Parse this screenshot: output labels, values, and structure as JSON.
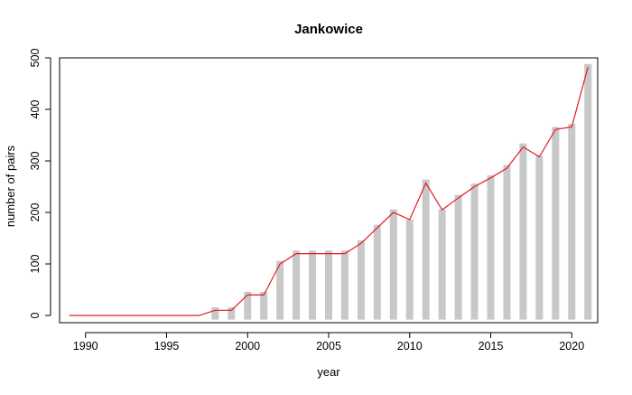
{
  "chart_data": {
    "type": "bar",
    "title": "Jankowice",
    "xlabel": "year",
    "ylabel": "number of pairs",
    "xlim": [
      1988.4,
      2021.6
    ],
    "ylim": [
      -14,
      500
    ],
    "xticks": [
      1990,
      1995,
      2000,
      2005,
      2010,
      2015,
      2020
    ],
    "yticks": [
      0,
      100,
      200,
      300,
      400,
      500
    ],
    "grid": false,
    "bar_baseline": -8,
    "colors": {
      "bars": "#c8c8c8",
      "line": "#e41a1c",
      "axes": "#000000"
    },
    "series": [
      {
        "type": "bar",
        "x": [
          1998,
          1999,
          2000,
          2001,
          2002,
          2003,
          2004,
          2005,
          2006,
          2007,
          2008,
          2009,
          2010,
          2011,
          2012,
          2013,
          2014,
          2015,
          2016,
          2017,
          2018,
          2019,
          2020,
          2021
        ],
        "values": [
          16,
          16,
          46,
          46,
          106,
          126,
          126,
          126,
          126,
          146,
          176,
          206,
          186,
          264,
          206,
          234,
          256,
          272,
          292,
          334,
          310,
          366,
          372,
          488
        ]
      },
      {
        "type": "line",
        "x": [
          1989,
          1990,
          1991,
          1992,
          1993,
          1994,
          1995,
          1996,
          1997,
          1998,
          1999,
          2000,
          2001,
          2002,
          2003,
          2004,
          2005,
          2006,
          2007,
          2008,
          2009,
          2010,
          2011,
          2012,
          2013,
          2014,
          2015,
          2016,
          2017,
          2018,
          2019,
          2020,
          2021
        ],
        "values": [
          0,
          0,
          0,
          0,
          0,
          0,
          0,
          0,
          0,
          10,
          10,
          40,
          40,
          100,
          120,
          120,
          120,
          120,
          140,
          170,
          200,
          186,
          257,
          205,
          228,
          250,
          267,
          286,
          327,
          308,
          361,
          366,
          482
        ]
      }
    ]
  }
}
